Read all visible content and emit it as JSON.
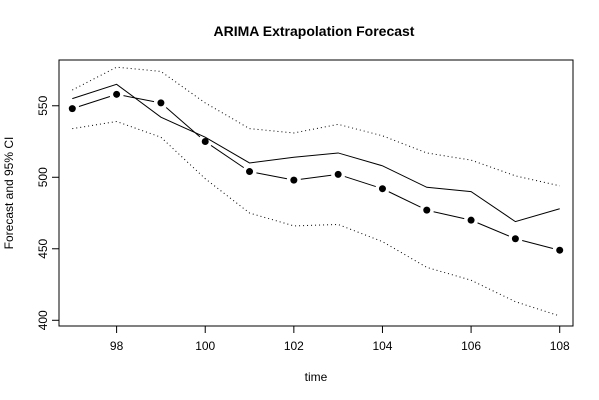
{
  "chart_data": {
    "type": "line",
    "title": "ARIMA Extrapolation Forecast",
    "xlabel": "time",
    "ylabel": "Forecast and 95% CI",
    "xlim": [
      96.7,
      108.3
    ],
    "ylim": [
      396,
      582
    ],
    "x_ticks": [
      98,
      100,
      102,
      104,
      106,
      108
    ],
    "y_ticks": [
      400,
      450,
      500,
      550
    ],
    "x": [
      97,
      98,
      99,
      100,
      101,
      102,
      103,
      104,
      105,
      106,
      107,
      108
    ],
    "series": [
      {
        "style": "solid-line",
        "values": [
          555,
          565,
          542,
          528,
          510,
          514,
          517,
          508,
          493,
          490,
          469,
          478
        ]
      },
      {
        "style": "line-with-points",
        "values": [
          548,
          558,
          552,
          525,
          504,
          498,
          502,
          492,
          477,
          470,
          457,
          449
        ]
      },
      {
        "style": "dotted-line",
        "values": [
          561,
          577,
          574,
          552,
          534,
          531,
          537,
          529,
          517,
          512,
          501,
          494
        ]
      },
      {
        "style": "dotted-line",
        "values": [
          534,
          539,
          528,
          499,
          475,
          466,
          467,
          455,
          437,
          428,
          413,
          403
        ]
      }
    ],
    "grid": false,
    "legend": "none",
    "colors": {
      "line": "#000000",
      "background": "#ffffff"
    }
  }
}
